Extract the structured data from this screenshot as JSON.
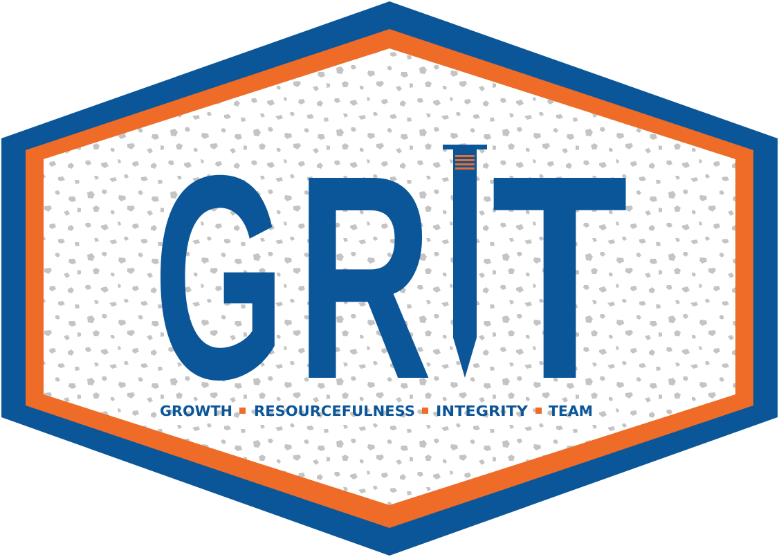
{
  "logo": {
    "wordmark": {
      "letters": [
        "G",
        "R",
        "T"
      ],
      "nail_icon": "nail-icon"
    },
    "tagline": {
      "words": [
        "GROWTH",
        "RESOURCEFULNESS",
        "INTEGRITY",
        "TEAM"
      ],
      "separator_icon": "square-bullet-icon"
    }
  },
  "colors": {
    "outer_border": "#0B5699",
    "inner_border": "#EE6B28",
    "interior": "#FFFFFF",
    "speckle": "#C4C4C4",
    "wordmark": "#0B5699",
    "tagline": "#0B5699",
    "accent": "#EE6B28"
  }
}
